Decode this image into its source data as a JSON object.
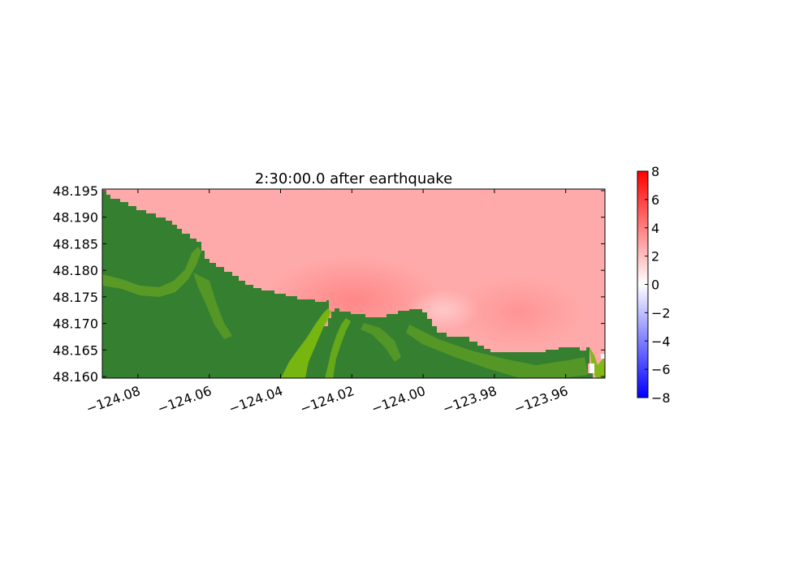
{
  "chart_data": {
    "type": "heatmap",
    "title": "2:30:00.0 after earthquake",
    "xlabel": "",
    "ylabel": "",
    "xlim": [
      -124.09,
      -123.949
    ],
    "ylim": [
      48.1597,
      48.1953
    ],
    "x_ticks": [
      -124.08,
      -124.06,
      -124.04,
      -124.02,
      -124.0,
      -123.98,
      -123.96
    ],
    "x_tick_labels": [
      "−124.08",
      "−124.06",
      "−124.04",
      "−124.02",
      "−124.00",
      "−123.98",
      "−123.96"
    ],
    "y_ticks": [
      48.16,
      48.165,
      48.17,
      48.175,
      48.18,
      48.185,
      48.19,
      48.195
    ],
    "y_tick_labels": [
      "48.160",
      "48.165",
      "48.170",
      "48.175",
      "48.180",
      "48.185",
      "48.190",
      "48.195"
    ],
    "colorbar": {
      "range": [
        -8,
        8
      ],
      "ticks": [
        8,
        6,
        4,
        2,
        0,
        -2,
        -4,
        -6,
        -8
      ],
      "tick_labels": [
        "8",
        "6",
        "4",
        "2",
        "0",
        "−2",
        "−4",
        "−6",
        "−8"
      ],
      "colormap": [
        "#0000ff",
        "#ffffff",
        "#ff0000"
      ]
    },
    "water_surface_approx": "mostly 2-3 (light red), peak about 3.5 near -124.02, 48.173",
    "land_colors": {
      "dark": "#357f31",
      "mid": "#5d9e25",
      "light": "#7bb80f"
    },
    "grid": false,
    "legend": "none"
  }
}
